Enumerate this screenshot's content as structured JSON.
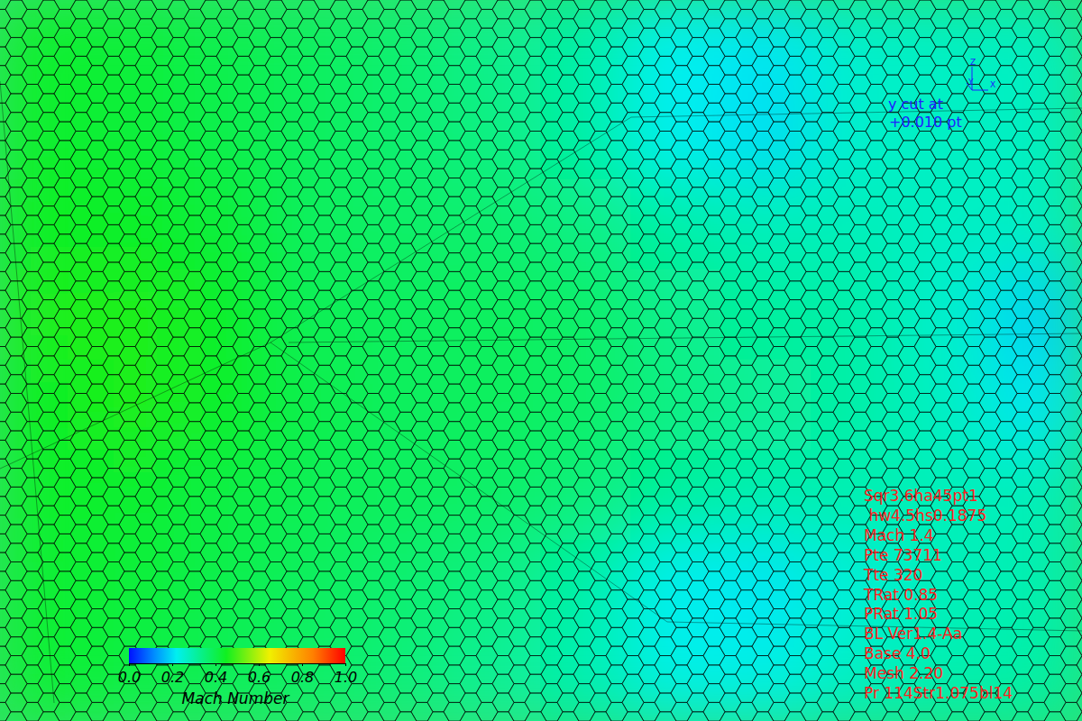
{
  "chart_data": {
    "type": "heatmap",
    "cells": [
      [
        0.44,
        0.42,
        0.4,
        0.38,
        0.36,
        0.33,
        0.3,
        0.22,
        0.21,
        0.26,
        0.27,
        0.27
      ],
      [
        0.44,
        0.42,
        0.4,
        0.38,
        0.36,
        0.34,
        0.3,
        0.22,
        0.2,
        0.26,
        0.27,
        0.27
      ],
      [
        0.45,
        0.44,
        0.42,
        0.38,
        0.37,
        0.36,
        0.34,
        0.3,
        0.28,
        0.28,
        0.27,
        0.27
      ],
      [
        0.46,
        0.46,
        0.44,
        0.39,
        0.38,
        0.38,
        0.37,
        0.33,
        0.31,
        0.3,
        0.26,
        0.19
      ],
      [
        0.45,
        0.46,
        0.44,
        0.4,
        0.38,
        0.38,
        0.37,
        0.34,
        0.32,
        0.3,
        0.27,
        0.21
      ],
      [
        0.44,
        0.43,
        0.41,
        0.39,
        0.38,
        0.37,
        0.35,
        0.31,
        0.29,
        0.29,
        0.28,
        0.28
      ],
      [
        0.43,
        0.42,
        0.4,
        0.38,
        0.36,
        0.34,
        0.3,
        0.22,
        0.21,
        0.25,
        0.28,
        0.29
      ],
      [
        0.43,
        0.41,
        0.39,
        0.37,
        0.35,
        0.32,
        0.29,
        0.23,
        0.23,
        0.27,
        0.29,
        0.3
      ]
    ],
    "colorbar": {
      "label": "Mach Number",
      "range": [
        0,
        1
      ],
      "ticks": [
        {
          "value": 0,
          "label": "0.0"
        },
        {
          "value": 0.2,
          "label": "0.2"
        },
        {
          "value": 0.4,
          "label": "0.4"
        },
        {
          "value": 0.6,
          "label": "0.6"
        },
        {
          "value": 0.8,
          "label": "0.8"
        },
        {
          "value": 1,
          "label": "1.0"
        }
      ]
    },
    "axes_triad": [
      "Z",
      "Y",
      "X"
    ],
    "cut_label": [
      "y cut at",
      "+0.010 pt"
    ],
    "info": [
      "Sqr3.6ha45pt1",
      " hw4.5hs0.1875",
      "Mach 1.4",
      "Pte 73711",
      "Tte 320",
      "TRat 0.85",
      "PRat 1.05",
      "BL Ver1.4-Aa",
      "Base 4.0",
      "Mesh 2.20",
      "Pr 114Str1.075bl14"
    ]
  }
}
